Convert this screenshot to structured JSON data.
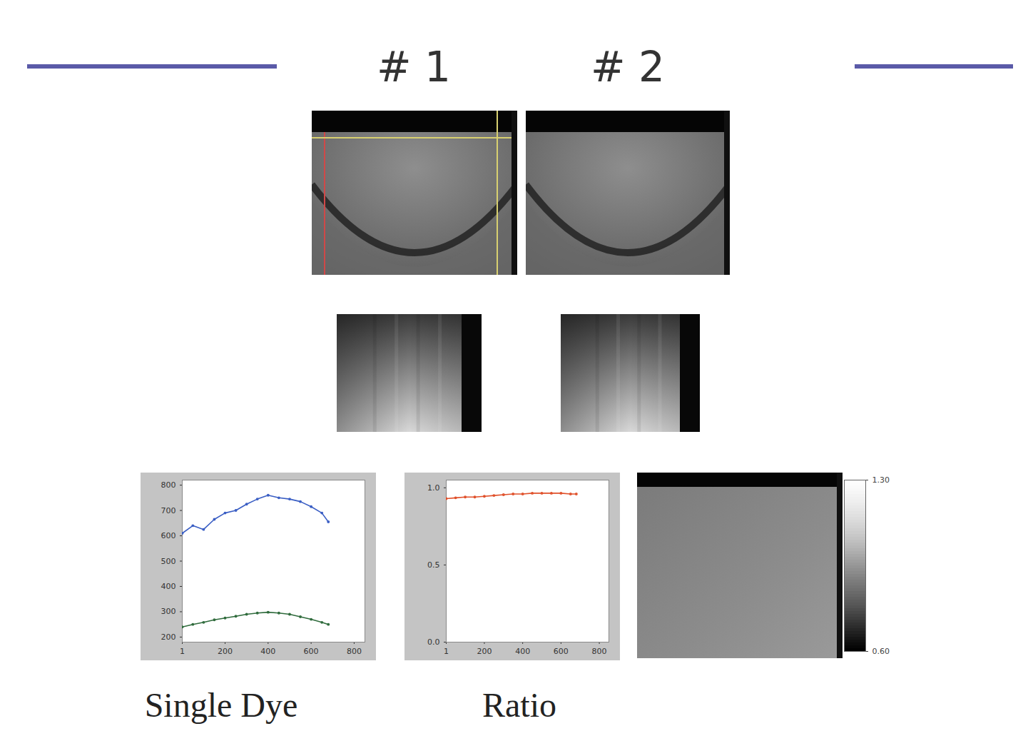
{
  "header": {
    "titles": [
      "# 1",
      "# 2"
    ]
  },
  "chart_data": [
    {
      "type": "line",
      "caption": "Single Dye",
      "x": [
        1,
        50,
        100,
        150,
        200,
        250,
        300,
        350,
        400,
        450,
        500,
        550,
        600,
        650,
        680
      ],
      "series": [
        {
          "color": "#3a5ec4",
          "values": [
            610,
            640,
            625,
            665,
            690,
            700,
            725,
            745,
            760,
            750,
            745,
            735,
            715,
            690,
            655
          ]
        },
        {
          "color": "#2f6b3c",
          "values": [
            240,
            250,
            258,
            268,
            275,
            282,
            290,
            295,
            298,
            295,
            290,
            280,
            270,
            258,
            250
          ]
        }
      ],
      "xlim": [
        1,
        850
      ],
      "xticks": [
        1,
        200,
        400,
        600,
        800
      ],
      "ylim": [
        180,
        820
      ],
      "yticks": [
        200,
        300,
        400,
        500,
        600,
        700,
        800
      ]
    },
    {
      "type": "line",
      "caption": "Ratio",
      "x": [
        1,
        50,
        100,
        150,
        200,
        250,
        300,
        350,
        400,
        450,
        500,
        550,
        600,
        650,
        680
      ],
      "series": [
        {
          "color": "#e0502a",
          "values": [
            0.93,
            0.935,
            0.94,
            0.94,
            0.945,
            0.95,
            0.955,
            0.96,
            0.96,
            0.965,
            0.965,
            0.965,
            0.965,
            0.96,
            0.96
          ]
        }
      ],
      "xlim": [
        1,
        850
      ],
      "xticks": [
        1,
        200,
        400,
        600,
        800
      ],
      "ylim": [
        0,
        1.05
      ],
      "yticks": [
        0,
        0.5,
        1
      ]
    }
  ],
  "ratio_image": {
    "colorbar": {
      "lim": [
        0.6,
        1.3
      ],
      "ticks": [
        0.6,
        1.3
      ]
    }
  }
}
